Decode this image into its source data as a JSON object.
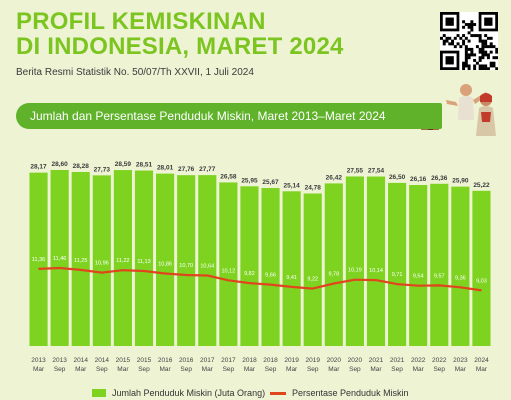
{
  "header": {
    "title_line1": "PROFIL KEMISKINAN",
    "title_line2": "DI INDONESIA, MARET 2024",
    "subtitle": "Berita Resmi Statistik No. 50/07/Th XXVII, 1 Juli 2024"
  },
  "banner": {
    "text": "Jumlah dan Persentase Penduduk Miskin, Maret 2013–Maret 2024"
  },
  "colors": {
    "bar": "#7ed321",
    "bar_edge": "#6cc21a",
    "line": "#e0451e",
    "title": "#7cc520",
    "banner": "#5fb22a",
    "background": "#eef3d4"
  },
  "icons": [
    "qr-code-icon",
    "people-illustration-icon",
    "house-icon"
  ],
  "chart_data": {
    "type": "bar",
    "categories": [
      [
        "2013",
        "Mar"
      ],
      [
        "2013",
        "Sep"
      ],
      [
        "2014",
        "Mar"
      ],
      [
        "2014",
        "Sep"
      ],
      [
        "2015",
        "Mar"
      ],
      [
        "2015",
        "Sep"
      ],
      [
        "2016",
        "Mar"
      ],
      [
        "2016",
        "Sep"
      ],
      [
        "2017",
        "Mar"
      ],
      [
        "2017",
        "Sep"
      ],
      [
        "2018",
        "Mar"
      ],
      [
        "2018",
        "Sep"
      ],
      [
        "2019",
        "Mar"
      ],
      [
        "2019",
        "Sep"
      ],
      [
        "2020",
        "Mar"
      ],
      [
        "2020",
        "Sep"
      ],
      [
        "2021",
        "Mar"
      ],
      [
        "2021",
        "Sep"
      ],
      [
        "2022",
        "Mar"
      ],
      [
        "2022",
        "Sep"
      ],
      [
        "2023",
        "Mar"
      ],
      [
        "2024",
        "Mar"
      ]
    ],
    "series": [
      {
        "name": "Jumlah Penduduk Miskin (Juta Orang)",
        "type": "bar",
        "values": [
          28.17,
          28.6,
          28.28,
          27.73,
          28.59,
          28.51,
          28.01,
          27.76,
          27.77,
          26.58,
          25.95,
          25.67,
          25.14,
          24.78,
          26.42,
          27.55,
          27.54,
          26.5,
          26.16,
          26.36,
          25.9,
          25.22
        ],
        "labels": [
          "28,17",
          "28,60",
          "28,28",
          "27,73",
          "28,59",
          "28,51",
          "28,01",
          "27,76",
          "27,77",
          "26,58",
          "25,95",
          "25,67",
          "25,14",
          "24,78",
          "26,42",
          "27,55",
          "27,54",
          "26,50",
          "26,16",
          "26,36",
          "25,90",
          "25,22"
        ]
      },
      {
        "name": "Persentase Penduduk Miskin",
        "type": "line",
        "values": [
          11.36,
          11.46,
          11.25,
          10.96,
          11.22,
          11.13,
          10.86,
          10.7,
          10.64,
          10.12,
          9.82,
          9.66,
          9.41,
          9.22,
          9.78,
          10.19,
          10.14,
          9.71,
          9.54,
          9.57,
          9.36,
          9.03
        ],
        "labels": [
          "11,36",
          "11,46",
          "11,25",
          "10,96",
          "11,22",
          "11,13",
          "10,86",
          "10,70",
          "10,64",
          "10,12",
          "9,82",
          "9,66",
          "9,41",
          "9,22",
          "9,78",
          "10,19",
          "10,14",
          "9,71",
          "9,54",
          "9,57",
          "9,36",
          "9,03"
        ]
      }
    ]
  }
}
